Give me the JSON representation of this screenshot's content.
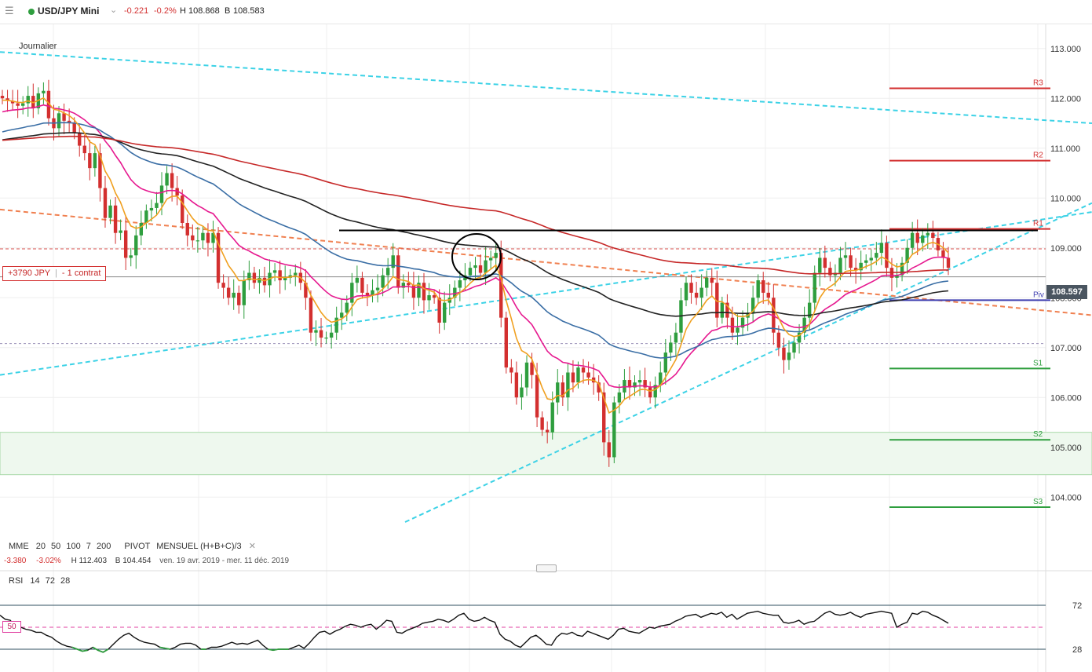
{
  "header": {
    "menu_icon": "hamburger-menu-icon",
    "status_color": "#2e9e3e",
    "instrument": "USD/JPY Mini",
    "dropdown_icon": "chevron-down-icon",
    "change_abs": "-0.221",
    "change_pct": "-0.2%",
    "high_label": "H",
    "high_value": "108.868",
    "bid_label": "B",
    "bid_value": "108.583"
  },
  "timeframe": "Journalier",
  "position": {
    "label": "+3790 JPY",
    "separator": "|",
    "size": "- 1 contrat",
    "level": 109.0
  },
  "last_price": {
    "label": "108.597",
    "value": 108.597
  },
  "pivots": [
    {
      "name": "R3",
      "value": 112.2,
      "color": "#d32f2f"
    },
    {
      "name": "R2",
      "value": 110.75,
      "color": "#d32f2f"
    },
    {
      "name": "R1",
      "value": 109.38,
      "color": "#d32f2f"
    },
    {
      "name": "Piv",
      "value": 107.95,
      "color": "#3f3fb0"
    },
    {
      "name": "S1",
      "value": 106.58,
      "color": "#2e9e3e"
    },
    {
      "name": "S2",
      "value": 105.15,
      "color": "#2e9e3e"
    },
    {
      "name": "S3",
      "value": 103.8,
      "color": "#2e9e3e"
    }
  ],
  "indicator_legend": {
    "mme_label": "MME",
    "mme_periods": [
      "20",
      "50",
      "100",
      "7",
      "200"
    ],
    "pivot_label": "PIVOT",
    "pivot_params": "MENSUEL  (H+B+C)/3",
    "close_icon": "close-icon",
    "range_change_abs": "-3.380",
    "range_change_pct": "-3.02%",
    "range_high": "H 112.403",
    "range_low": "B 104.454",
    "date_range": "ven. 19 avr. 2019 - mer. 11 déc. 2019"
  },
  "rsi_legend": {
    "label": "RSI",
    "params": [
      "14",
      "72",
      "28"
    ],
    "mid_tag": "50"
  },
  "chart_data": {
    "type": "candlestick",
    "price_axis": {
      "min": 103.5,
      "max": 113.5,
      "ticks": [
        "104.000",
        "105.000",
        "106.000",
        "107.000",
        "108.000",
        "109.000",
        "110.000",
        "111.000",
        "112.000",
        "113.000"
      ],
      "tick_values": [
        104,
        105,
        106,
        107,
        108,
        109,
        110,
        111,
        112,
        113
      ]
    },
    "rsi_axis": {
      "min": 0,
      "max": 100,
      "ticks": [
        "72",
        "28"
      ],
      "tick_values": [
        72,
        28
      ],
      "mid": 50
    },
    "closes": [
      112.0,
      111.95,
      111.9,
      111.85,
      111.9,
      112.05,
      111.8,
      112.1,
      112.15,
      111.6,
      111.4,
      111.7,
      111.55,
      111.5,
      111.3,
      111.05,
      110.9,
      110.6,
      110.9,
      110.2,
      109.6,
      109.85,
      109.3,
      109.35,
      108.8,
      108.85,
      109.25,
      109.5,
      109.75,
      109.8,
      109.9,
      110.25,
      110.5,
      110.2,
      110.05,
      109.5,
      109.25,
      109.15,
      109.15,
      109.3,
      109.1,
      109.3,
      108.3,
      108.2,
      108.0,
      108.1,
      107.85,
      108.35,
      108.5,
      108.3,
      108.4,
      108.25,
      108.5,
      108.55,
      108.35,
      108.4,
      108.45,
      108.5,
      108.3,
      108.0,
      107.3,
      107.35,
      107.2,
      107.2,
      107.3,
      107.6,
      107.7,
      107.9,
      108.3,
      108.4,
      108.1,
      108.05,
      108.15,
      108.2,
      108.45,
      108.6,
      108.85,
      108.2,
      108.3,
      108.25,
      108.0,
      108.3,
      107.95,
      108.05,
      108.0,
      107.5,
      107.9,
      108.0,
      108.2,
      108.35,
      108.45,
      108.6,
      108.65,
      108.5,
      108.75,
      108.8,
      108.9,
      107.6,
      106.6,
      106.5,
      106.0,
      106.2,
      106.7,
      106.45,
      105.6,
      105.35,
      105.3,
      105.9,
      106.3,
      106.0,
      106.5,
      106.3,
      106.6,
      106.5,
      106.4,
      106.3,
      106.1,
      105.1,
      104.8,
      105.9,
      106.1,
      106.35,
      106.2,
      106.3,
      106.35,
      106.2,
      106.0,
      106.25,
      106.5,
      106.9,
      107.1,
      107.3,
      107.95,
      108.3,
      108.1,
      108.0,
      108.2,
      108.4,
      108.3,
      107.6,
      107.9,
      107.6,
      107.3,
      107.4,
      107.6,
      107.7,
      108.0,
      108.35,
      108.1,
      108.0,
      107.3,
      107.0,
      106.75,
      106.9,
      107.1,
      107.3,
      107.6,
      107.9,
      108.5,
      108.8,
      108.6,
      108.45,
      108.5,
      108.8,
      108.85,
      108.6,
      108.55,
      108.7,
      108.75,
      108.8,
      108.9,
      109.1,
      108.6,
      108.4,
      108.45,
      108.7,
      109.0,
      109.3,
      109.1,
      109.25,
      109.3,
      109.2,
      108.95,
      108.8,
      108.6
    ],
    "series": [
      {
        "name": "20",
        "color": "#e6188f",
        "period": 20
      },
      {
        "name": "50",
        "color": "#3a6ea5",
        "period": 50
      },
      {
        "name": "100",
        "color": "#222222",
        "period": 100
      },
      {
        "name": "7",
        "color": "#f0a020",
        "period": 7
      },
      {
        "name": "200",
        "color": "#c62828",
        "period": 200
      }
    ],
    "rsi": [
      62,
      58,
      57,
      50,
      50,
      48,
      47,
      45,
      45,
      42,
      40,
      36,
      33,
      31,
      30,
      28,
      26,
      27,
      30,
      27,
      25,
      28,
      33,
      38,
      42,
      44,
      40,
      37,
      35,
      34,
      33,
      30,
      29,
      28,
      30,
      33,
      34,
      34,
      32,
      28,
      28,
      30,
      30,
      31,
      33,
      35,
      33,
      34,
      33,
      35,
      37,
      32,
      28,
      27,
      28,
      28,
      28,
      30,
      32,
      29,
      34,
      40,
      45,
      46,
      43,
      46,
      48,
      51,
      53,
      52,
      50,
      52,
      53,
      48,
      52,
      57,
      56,
      45,
      44,
      47,
      49,
      51,
      54,
      55,
      56,
      58,
      57,
      55,
      58,
      62,
      64,
      58,
      56,
      57,
      60,
      57,
      55,
      43,
      38,
      36,
      32,
      30,
      35,
      40,
      42,
      38,
      33,
      32,
      40,
      44,
      43,
      45,
      42,
      41,
      46,
      44,
      42,
      40,
      38,
      42,
      48,
      49,
      46,
      45,
      44,
      47,
      50,
      49,
      51,
      52,
      53,
      56,
      58,
      61,
      62,
      63,
      60,
      62,
      64,
      63,
      65,
      60,
      63,
      58,
      61,
      64,
      65,
      66,
      64,
      63,
      62,
      62,
      55,
      54,
      55,
      57,
      53,
      55,
      56,
      60,
      64,
      66,
      63,
      62,
      63,
      65,
      62,
      60,
      63,
      64,
      65,
      66,
      65,
      64,
      50,
      53,
      55,
      64,
      63,
      66,
      65,
      62,
      60,
      57,
      54
    ]
  }
}
